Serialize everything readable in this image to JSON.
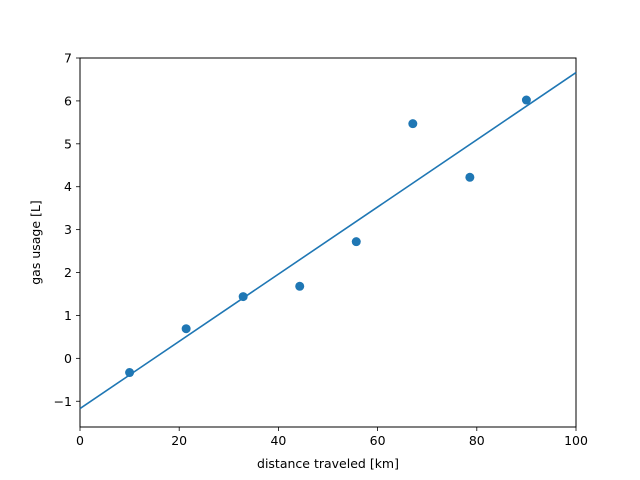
{
  "chart_data": {
    "type": "scatter",
    "title": "",
    "xlabel": "distance traveled [km]",
    "ylabel": "gas usage [L]",
    "xlim": [
      0,
      100
    ],
    "ylim": [
      -1.6,
      7.0
    ],
    "x_ticks": [
      0,
      20,
      40,
      60,
      80,
      100
    ],
    "y_ticks": [
      -1,
      0,
      1,
      2,
      3,
      4,
      5,
      6,
      7
    ],
    "x_tick_labels": [
      "0",
      "20",
      "40",
      "60",
      "80",
      "100"
    ],
    "y_tick_labels": [
      "−1",
      "0",
      "1",
      "2",
      "3",
      "4",
      "5",
      "6",
      "7"
    ],
    "grid": false,
    "legend": false,
    "series": [
      {
        "type": "scatter",
        "x": [
          10,
          21.4,
          32.9,
          44.3,
          55.7,
          67.1,
          78.6,
          90
        ],
        "y": [
          -0.33,
          0.69,
          1.44,
          1.68,
          2.72,
          5.47,
          4.22,
          6.02
        ]
      },
      {
        "type": "line",
        "x": [
          0,
          100
        ],
        "y": [
          -1.17,
          6.66
        ]
      }
    ],
    "colors": {
      "series": "#1f77b4",
      "axes": "#000000"
    }
  }
}
